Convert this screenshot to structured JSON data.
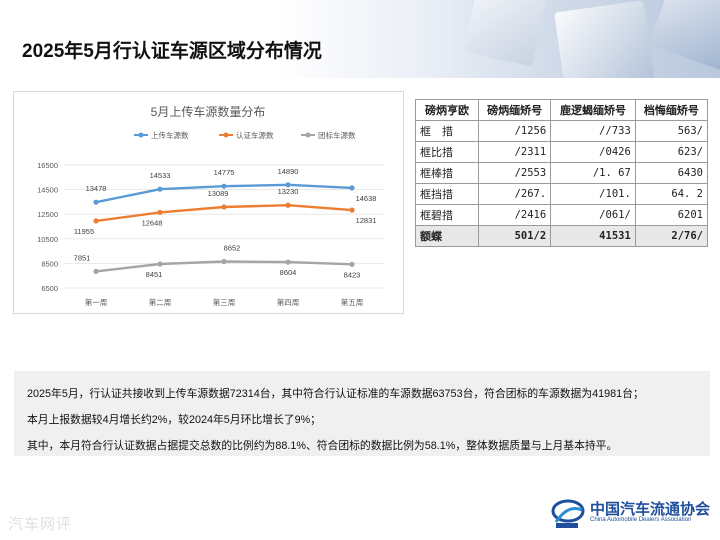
{
  "page": {
    "title": "2025年5月行认证车源区域分布情况",
    "watermark": "汽车网评",
    "logo_cn": "中国汽车流通协会",
    "logo_en": "China Automobile Dealers Association"
  },
  "colors": {
    "upload": "#5b9bd5",
    "certified": "#ed7d31",
    "group": "#a5a5a5"
  },
  "chart_data": {
    "type": "line",
    "title": "5月上传车源数量分布",
    "categories": [
      "第一周",
      "第二周",
      "第三周",
      "第四周",
      "第五周"
    ],
    "ylim": [
      6500,
      16500
    ],
    "yticks": [
      6500,
      8500,
      10500,
      12500,
      14500,
      16500
    ],
    "grid": true,
    "legend_position": "top",
    "series": [
      {
        "name": "上传车源数",
        "values": [
          13478,
          14533,
          14775,
          14890,
          14638
        ]
      },
      {
        "name": "认证车源数",
        "values": [
          11955,
          12648,
          13089,
          13230,
          12831
        ]
      },
      {
        "name": "团标车源数",
        "values": [
          7851,
          8451,
          8652,
          8604,
          8423
        ]
      }
    ]
  },
  "table": {
    "headers": [
      "磅炳亨欧",
      "磅炳缅矫号",
      "鹿逻蝎缅矫号",
      "档悔缅矫号"
    ],
    "rows": [
      [
        "框　措",
        "/1256",
        "//733",
        "563/"
      ],
      [
        "框比措",
        "/2311",
        "/0426",
        "623/"
      ],
      [
        "框棒措",
        "/2553",
        "/1. 67",
        "6430"
      ],
      [
        "框挡措",
        "/267.",
        "/101.",
        "64. 2"
      ],
      [
        "框碧措",
        "/2416",
        "/061/",
        "6201"
      ]
    ],
    "total": [
      "额蝶",
      "501/2",
      "41531",
      "2/76/"
    ]
  },
  "summary": {
    "line1": "2025年5月，行认证共接收到上传车源数据72314台，其中符合行认证标准的车源数据63753台，符合团标的车源数据为41981台；",
    "line2": "本月上报数据较4月增长约2%，较2024年5月环比增长了9%；",
    "line3": "其中，本月符合行认证数据占据提交总数的比例约为88.1%、符合团标的数据比例为58.1%，整体数据质量与上月基本持平。"
  }
}
